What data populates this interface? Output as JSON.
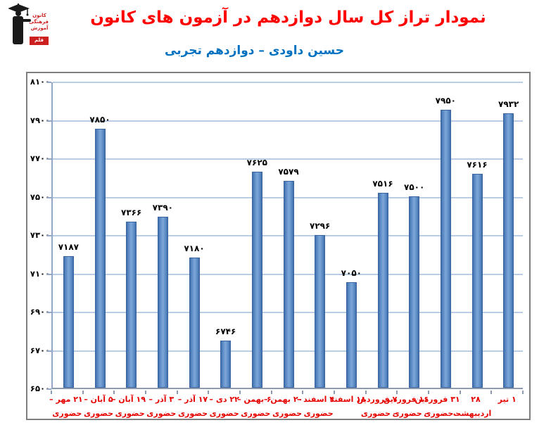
{
  "header": {
    "title": "نمودار تراز کل سال دوازدهم در آزمون های کانون",
    "subtitle": "حسین داودی – دوازدهم تجربی",
    "title_color": "#ff0000",
    "subtitle_color": "#0070c0",
    "logo": {
      "lines": [
        "کانون",
        "فرهنگی",
        "آموزش"
      ],
      "badge": "قلم چی"
    }
  },
  "chart_data": {
    "type": "bar",
    "title": "نمودار تراز کل سال دوازدهم در آزمون های کانون",
    "subtitle": "حسین داودی – دوازدهم تجربی",
    "xlabel": "",
    "ylabel": "",
    "ylim": [
      6500,
      8100
    ],
    "ytick_step": 200,
    "yticks": [
      8100,
      7900,
      7700,
      7500,
      7300,
      7100,
      6900,
      6700,
      6500
    ],
    "ytick_labels_fa": [
      "۸۱۰۰",
      "۷۹۰۰",
      "۷۷۰۰",
      "۷۵۰۰",
      "۷۳۰۰",
      "۷۱۰۰",
      "۶۹۰۰",
      "۶۷۰۰",
      "۶۵۰۰"
    ],
    "grid": true,
    "legend": false,
    "bar_color": "#4f81bd",
    "gridline_color": "#b9cde5",
    "value_label_color": "#000000",
    "category_label_color": "#e60000",
    "bars": [
      {
        "value": 7187,
        "label_fa": "۷۱۸۷",
        "cat_line1": "۲۱ مهر –",
        "cat_line2": "حضوری"
      },
      {
        "value": 7850,
        "label_fa": "۷۸۵۰",
        "cat_line1": "۵ آبان –",
        "cat_line2": "حضوری"
      },
      {
        "value": 7366,
        "label_fa": "۷۳۶۶",
        "cat_line1": "۱۹ آبان –",
        "cat_line2": "حضوری"
      },
      {
        "value": 7390,
        "label_fa": "۷۳۹۰",
        "cat_line1": "۳ آذر –",
        "cat_line2": "حضوری"
      },
      {
        "value": 7180,
        "label_fa": "۷۱۸۰",
        "cat_line1": "۱۷ آذر –",
        "cat_line2": "حضوری"
      },
      {
        "value": 6746,
        "label_fa": "۶۷۴۶",
        "cat_line1": "۲۲ دی –",
        "cat_line2": "حضوری"
      },
      {
        "value": 7625,
        "label_fa": "۷۶۲۵",
        "cat_line1": "۶ بهمن –",
        "cat_line2": "حضوری"
      },
      {
        "value": 7579,
        "label_fa": "۷۵۷۹",
        "cat_line1": "۲۰ بهمن –",
        "cat_line2": "حضوری"
      },
      {
        "value": 7296,
        "label_fa": "۷۲۹۶",
        "cat_line1": "۴ اسفند –",
        "cat_line2": "حضوری"
      },
      {
        "value": 7050,
        "label_fa": "۷۰۵۰",
        "cat_line1": "۱۸ اسفند",
        "cat_line2": ""
      },
      {
        "value": 7516,
        "label_fa": "۷۵۱۶",
        "cat_line1": "۷ فروردین",
        "cat_line2": "– حضوری"
      },
      {
        "value": 7500,
        "label_fa": "۷۵۰۰",
        "cat_line1": "۱۶ فروردین",
        "cat_line2": "– حضوری"
      },
      {
        "value": 7950,
        "label_fa": "۷۹۵۰",
        "cat_line1": "۳۱ فروردین",
        "cat_line2": "– حضوری"
      },
      {
        "value": 7616,
        "label_fa": "۷۶۱۶",
        "cat_line1": "۲۸",
        "cat_line2": "اردیبهشت"
      },
      {
        "value": 7932,
        "label_fa": "۷۹۳۲",
        "cat_line1": "۱ تیر",
        "cat_line2": ""
      }
    ]
  }
}
